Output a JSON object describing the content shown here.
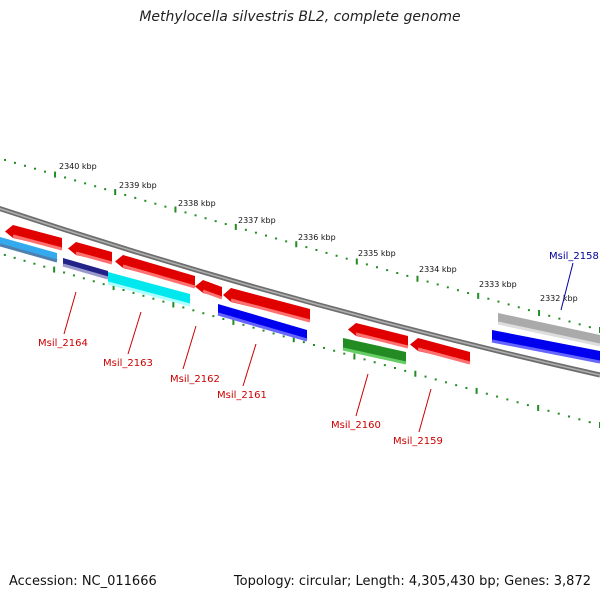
{
  "title": "Methylocella silvestris BL2, complete genome",
  "accession": "Accession: NC_011666",
  "summary": "Topology: circular; Length: 4,305,430 bp; Genes: 3,872",
  "colors": {
    "tick": "#228B22",
    "backbone": "#808080",
    "label_red": "#CC0000",
    "label_blue": "#000099"
  },
  "kbp_ticks": [
    "2340 kbp",
    "2339 kbp",
    "2338 kbp",
    "2337 kbp",
    "2336 kbp",
    "2335 kbp",
    "2334 kbp",
    "2333 kbp",
    "2332 kbp"
  ],
  "genes": [
    {
      "label": "Msil_2164",
      "color": "#CC0000"
    },
    {
      "label": "Msil_2163",
      "color": "#CC0000"
    },
    {
      "label": "Msil_2162",
      "color": "#CC0000"
    },
    {
      "label": "Msil_2161",
      "color": "#CC0000"
    },
    {
      "label": "Msil_2160",
      "color": "#CC0000"
    },
    {
      "label": "Msil_2159",
      "color": "#CC0000"
    },
    {
      "label": "Msil_2158",
      "color": "#000099"
    }
  ]
}
